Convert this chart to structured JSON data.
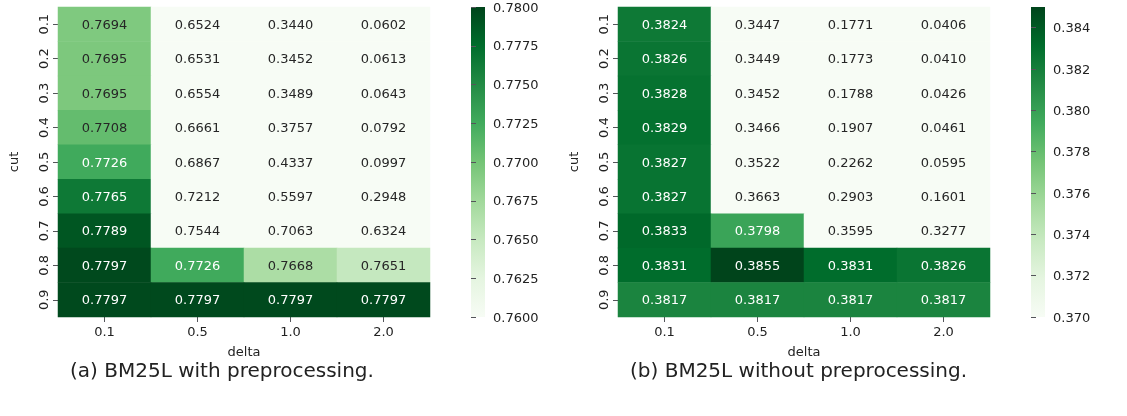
{
  "chart_data": [
    {
      "type": "heatmap",
      "xlabel": "delta",
      "ylabel": "cut",
      "annotations": [
        "(a) BM25L with preprocessing."
      ],
      "categories": [
        "0.1",
        "0.5",
        "1.0",
        "2.0"
      ],
      "y_categories": [
        "0.1",
        "0.2",
        "0.3",
        "0.4",
        "0.5",
        "0.6",
        "0.7",
        "0.8",
        "0.9"
      ],
      "cells": [
        [
          0.7694,
          0.6524,
          0.344,
          0.0602
        ],
        [
          0.7695,
          0.6531,
          0.3452,
          0.0613
        ],
        [
          0.7695,
          0.6554,
          0.3489,
          0.0643
        ],
        [
          0.7708,
          0.6661,
          0.3757,
          0.0792
        ],
        [
          0.7726,
          0.6867,
          0.4337,
          0.0997
        ],
        [
          0.7765,
          0.7212,
          0.5597,
          0.2948
        ],
        [
          0.7789,
          0.7544,
          0.7063,
          0.6324
        ],
        [
          0.7797,
          0.7726,
          0.7668,
          0.7651
        ],
        [
          0.7797,
          0.7797,
          0.7797,
          0.7797
        ]
      ],
      "cell_labels": [
        [
          "0.7694",
          "0.6524",
          "0.3440",
          "0.0602"
        ],
        [
          "0.7695",
          "0.6531",
          "0.3452",
          "0.0613"
        ],
        [
          "0.7695",
          "0.6554",
          "0.3489",
          "0.0643"
        ],
        [
          "0.7708",
          "0.6661",
          "0.3757",
          "0.0792"
        ],
        [
          "0.7726",
          "0.6867",
          "0.4337",
          "0.0997"
        ],
        [
          "0.7765",
          "0.7212",
          "0.5597",
          "0.2948"
        ],
        [
          "0.7789",
          "0.7544",
          "0.7063",
          "0.6324"
        ],
        [
          "0.7797",
          "0.7726",
          "0.7668",
          "0.7651"
        ],
        [
          "0.7797",
          "0.7797",
          "0.7797",
          "0.7797"
        ]
      ],
      "clim": [
        0.76,
        0.78
      ],
      "cticks": [
        {
          "value": 0.76,
          "label": "0.7600"
        },
        {
          "value": 0.7625,
          "label": "0.7625"
        },
        {
          "value": 0.765,
          "label": "0.7650"
        },
        {
          "value": 0.7675,
          "label": "0.7675"
        },
        {
          "value": 0.77,
          "label": "0.7700"
        },
        {
          "value": 0.7725,
          "label": "0.7725"
        },
        {
          "value": 0.775,
          "label": "0.7750"
        },
        {
          "value": 0.7775,
          "label": "0.7775"
        },
        {
          "value": 0.78,
          "label": "0.7800"
        }
      ]
    },
    {
      "type": "heatmap",
      "xlabel": "delta",
      "ylabel": "cut",
      "annotations": [
        "(b) BM25L without preprocessing."
      ],
      "categories": [
        "0.1",
        "0.5",
        "1.0",
        "2.0"
      ],
      "y_categories": [
        "0.1",
        "0.2",
        "0.3",
        "0.4",
        "0.5",
        "0.6",
        "0.7",
        "0.8",
        "0.9"
      ],
      "cells": [
        [
          0.3824,
          0.3447,
          0.1771,
          0.0406
        ],
        [
          0.3826,
          0.3449,
          0.1773,
          0.041
        ],
        [
          0.3828,
          0.3452,
          0.1788,
          0.0426
        ],
        [
          0.3829,
          0.3466,
          0.1907,
          0.0461
        ],
        [
          0.3827,
          0.3522,
          0.2262,
          0.0595
        ],
        [
          0.3827,
          0.3663,
          0.2903,
          0.1601
        ],
        [
          0.3833,
          0.3798,
          0.3595,
          0.3277
        ],
        [
          0.3831,
          0.3855,
          0.3831,
          0.3826
        ],
        [
          0.3817,
          0.3817,
          0.3817,
          0.3817
        ]
      ],
      "cell_labels": [
        [
          "0.3824",
          "0.3447",
          "0.1771",
          "0.0406"
        ],
        [
          "0.3826",
          "0.3449",
          "0.1773",
          "0.0410"
        ],
        [
          "0.3828",
          "0.3452",
          "0.1788",
          "0.0426"
        ],
        [
          "0.3829",
          "0.3466",
          "0.1907",
          "0.0461"
        ],
        [
          "0.3827",
          "0.3522",
          "0.2262",
          "0.0595"
        ],
        [
          "0.3827",
          "0.3663",
          "0.2903",
          "0.1601"
        ],
        [
          "0.3833",
          "0.3798",
          "0.3595",
          "0.3277"
        ],
        [
          "0.3831",
          "0.3855",
          "0.3831",
          "0.3826"
        ],
        [
          "0.3817",
          "0.3817",
          "0.3817",
          "0.3817"
        ]
      ],
      "clim": [
        0.37,
        0.385
      ],
      "cticks": [
        {
          "value": 0.37,
          "label": "0.370"
        },
        {
          "value": 0.372,
          "label": "0.372"
        },
        {
          "value": 0.374,
          "label": "0.374"
        },
        {
          "value": 0.376,
          "label": "0.376"
        },
        {
          "value": 0.378,
          "label": "0.378"
        },
        {
          "value": 0.38,
          "label": "0.380"
        },
        {
          "value": 0.382,
          "label": "0.382"
        },
        {
          "value": 0.384,
          "label": "0.384"
        }
      ]
    }
  ]
}
